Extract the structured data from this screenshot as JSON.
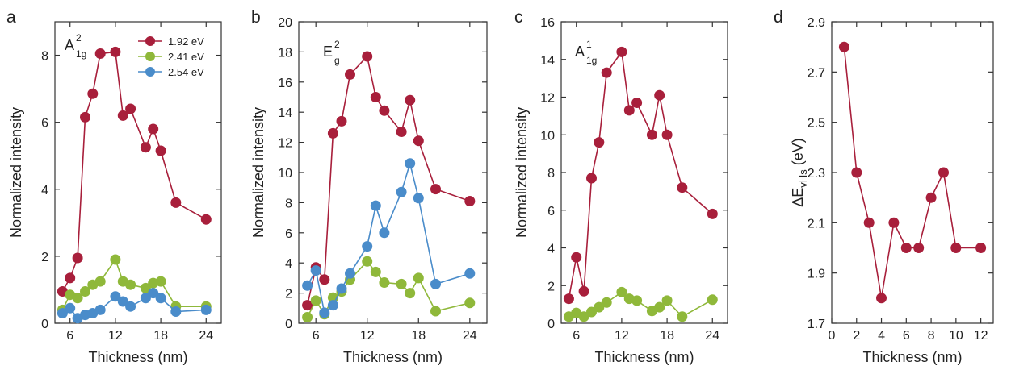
{
  "colors": {
    "red": "#a81f3b",
    "green": "#8fb83a",
    "blue": "#4a8cca"
  },
  "chart_data": [
    {
      "type": "line",
      "panel": "a",
      "annotation": {
        "main": "A",
        "sup": "2",
        "sub": "1g"
      },
      "xlabel": "Thickness (nm)",
      "ylabel": "Normalized intensity",
      "xlim": [
        4,
        26
      ],
      "ylim": [
        0,
        9
      ],
      "xticks": [
        6,
        12,
        18,
        24
      ],
      "yticks": [
        0,
        2,
        4,
        6,
        8
      ],
      "legend": "top-right",
      "series": [
        {
          "name": "1.92 eV",
          "color": "#a81f3b",
          "x": [
            5,
            6,
            7,
            8,
            9,
            10,
            12,
            13,
            14,
            16,
            17,
            18,
            20,
            24
          ],
          "y": [
            0.95,
            1.35,
            1.95,
            6.15,
            6.85,
            8.05,
            8.1,
            6.2,
            6.4,
            5.25,
            5.8,
            5.15,
            3.6,
            3.1
          ]
        },
        {
          "name": "2.41 eV",
          "color": "#8fb83a",
          "x": [
            5,
            6,
            7,
            8,
            9,
            10,
            12,
            13,
            14,
            16,
            17,
            18,
            20,
            24
          ],
          "y": [
            0.4,
            0.85,
            0.75,
            0.95,
            1.15,
            1.25,
            1.9,
            1.25,
            1.15,
            1.05,
            1.2,
            1.25,
            0.5,
            0.5
          ]
        },
        {
          "name": "2.54 eV",
          "color": "#4a8cca",
          "x": [
            5,
            6,
            7,
            8,
            9,
            10,
            12,
            13,
            14,
            16,
            17,
            18,
            20,
            24
          ],
          "y": [
            0.3,
            0.45,
            0.15,
            0.25,
            0.3,
            0.4,
            0.8,
            0.65,
            0.5,
            0.75,
            0.9,
            0.75,
            0.35,
            0.4
          ]
        }
      ]
    },
    {
      "type": "line",
      "panel": "b",
      "annotation": {
        "main": "E",
        "sup": "2",
        "sub": "g"
      },
      "xlabel": "Thickness (nm)",
      "ylabel": "Normalized intensity",
      "xlim": [
        4,
        26
      ],
      "ylim": [
        0,
        20
      ],
      "xticks": [
        6,
        12,
        18,
        24
      ],
      "yticks": [
        0,
        2,
        4,
        6,
        8,
        10,
        12,
        14,
        16,
        18,
        20
      ],
      "series": [
        {
          "name": "1.92 eV",
          "color": "#a81f3b",
          "x": [
            5,
            6,
            7,
            8,
            9,
            10,
            12,
            13,
            14,
            16,
            17,
            18,
            20,
            24
          ],
          "y": [
            1.2,
            3.7,
            2.9,
            12.6,
            13.4,
            16.5,
            17.7,
            15.0,
            14.1,
            12.7,
            14.8,
            12.1,
            8.9,
            8.1
          ]
        },
        {
          "name": "2.41 eV",
          "color": "#8fb83a",
          "x": [
            5,
            6,
            7,
            8,
            9,
            10,
            12,
            13,
            14,
            16,
            17,
            18,
            20,
            24
          ],
          "y": [
            0.4,
            1.5,
            0.6,
            1.7,
            2.1,
            2.9,
            4.1,
            3.4,
            2.7,
            2.6,
            2.0,
            3.0,
            0.8,
            1.35
          ]
        },
        {
          "name": "2.54 eV",
          "color": "#4a8cca",
          "x": [
            5,
            6,
            7,
            8,
            9,
            10,
            12,
            13,
            14,
            16,
            17,
            18,
            20,
            24
          ],
          "y": [
            2.5,
            3.5,
            0.7,
            1.2,
            2.3,
            3.3,
            5.1,
            7.8,
            6.0,
            8.7,
            10.6,
            8.3,
            2.6,
            3.3
          ]
        }
      ]
    },
    {
      "type": "line",
      "panel": "c",
      "annotation": {
        "main": "A",
        "sup": "1",
        "sub": "1g"
      },
      "xlabel": "Thickness (nm)",
      "ylabel": "Normalized intensity",
      "xlim": [
        4,
        26
      ],
      "ylim": [
        0,
        16
      ],
      "xticks": [
        6,
        12,
        18,
        24
      ],
      "yticks": [
        0,
        2,
        4,
        6,
        8,
        10,
        12,
        14,
        16
      ],
      "series": [
        {
          "name": "1.92 eV",
          "color": "#a81f3b",
          "x": [
            5,
            6,
            7,
            8,
            9,
            10,
            12,
            13,
            14,
            16,
            17,
            18,
            20,
            24
          ],
          "y": [
            1.3,
            3.5,
            1.7,
            7.7,
            9.6,
            13.3,
            14.4,
            11.3,
            11.7,
            10.0,
            12.1,
            10.0,
            7.2,
            5.8
          ]
        },
        {
          "name": "2.41 eV",
          "color": "#8fb83a",
          "x": [
            5,
            6,
            7,
            8,
            9,
            10,
            12,
            13,
            14,
            16,
            17,
            18,
            20,
            24
          ],
          "y": [
            0.35,
            0.55,
            0.35,
            0.6,
            0.85,
            1.1,
            1.65,
            1.3,
            1.2,
            0.65,
            0.85,
            1.2,
            0.35,
            1.25
          ]
        }
      ]
    },
    {
      "type": "line",
      "panel": "d",
      "xlabel": "Thickness (nm)",
      "ylabel": {
        "main": "ΔE",
        "sub": "vHs",
        "tail": " (eV)"
      },
      "xlim": [
        0,
        13
      ],
      "ylim": [
        1.7,
        2.9
      ],
      "xticks": [
        0,
        2,
        4,
        6,
        8,
        10,
        12
      ],
      "yticks": [
        "1.7",
        "1.9",
        "2.1",
        "2.3",
        "2.5",
        "2.7",
        "2.9"
      ],
      "series": [
        {
          "color": "#a81f3b",
          "x": [
            1,
            2,
            3,
            4,
            5,
            6,
            7,
            8,
            9,
            10,
            12
          ],
          "y": [
            2.8,
            2.3,
            2.1,
            1.8,
            2.1,
            2.0,
            2.0,
            2.2,
            2.3,
            2.0,
            2.0
          ]
        }
      ]
    }
  ]
}
